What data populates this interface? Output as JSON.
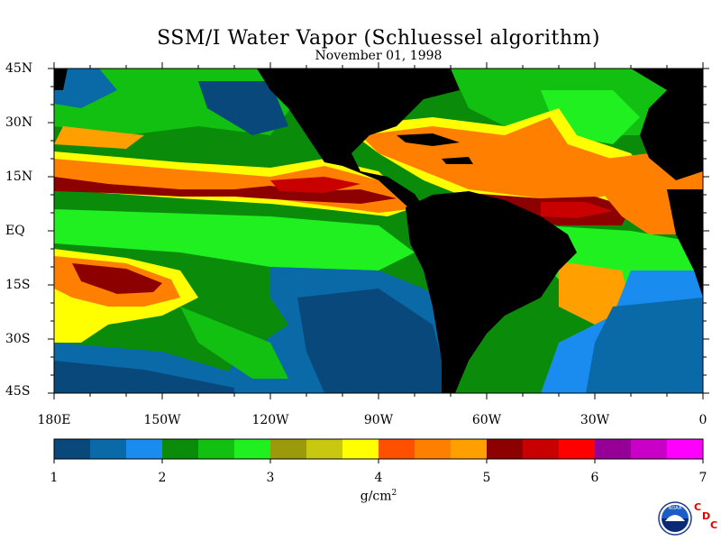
{
  "title": "SSM/I Water Vapor (Schluessel algorithm)",
  "subtitle": "November 01, 1998",
  "lat_labels": [
    "45N",
    "30N",
    "15N",
    "EQ",
    "15S",
    "30S",
    "45S"
  ],
  "lon_labels": [
    "180E",
    "150W",
    "120W",
    "90W",
    "60W",
    "30W",
    "0"
  ],
  "colorbar": {
    "labels": [
      "1",
      "2",
      "3",
      "4",
      "5",
      "6",
      "7"
    ],
    "unit": "g/cm",
    "unit_exp": "2",
    "min": 1,
    "max": 7,
    "colors": [
      "#08487a",
      "#0a6aa8",
      "#1a8cf0",
      "#0a8c0a",
      "#12c012",
      "#20f020",
      "#9a9a0a",
      "#c8c810",
      "#ffff00",
      "#ff5000",
      "#ff8000",
      "#ffa000",
      "#8c0000",
      "#c80000",
      "#ff0000",
      "#960096",
      "#c800c8",
      "#ff00ff"
    ]
  },
  "logo": {
    "text": "NOAA",
    "letters": [
      "C",
      "D",
      "C"
    ]
  },
  "colors": {
    "land": "#000000",
    "ocean_low": "#0a6aa8",
    "ocean_mid": "#12c012",
    "ocean_high": "#ff8000",
    "ocean_peak": "#8c0000"
  }
}
